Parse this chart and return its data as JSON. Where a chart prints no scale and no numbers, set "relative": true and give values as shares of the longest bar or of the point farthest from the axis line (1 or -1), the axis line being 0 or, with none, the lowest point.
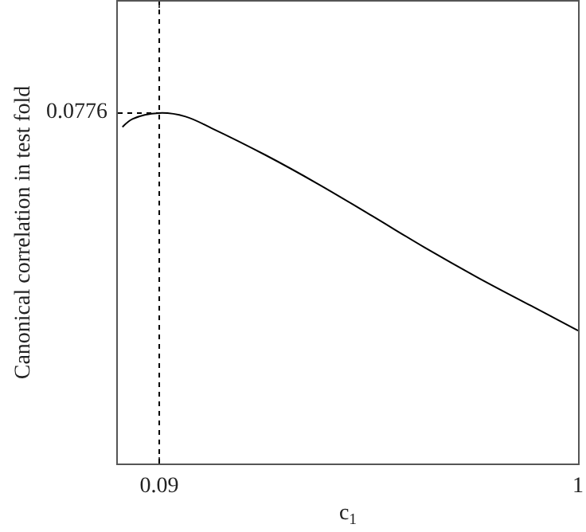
{
  "chart_data": {
    "type": "line",
    "relative": true,
    "xlabel": "c$_{1}$",
    "ylabel": "Canonical correlation in test fold",
    "x": [
      0.01,
      0.032,
      0.09,
      0.147,
      0.205,
      0.321,
      0.436,
      0.552,
      0.667,
      0.783,
      0.898,
      1.0
    ],
    "series": [
      {
        "color": "#000000",
        "values": [
          0.96,
          0.983,
          1.0,
          0.99,
          0.956,
          0.88,
          0.797,
          0.707,
          0.616,
          0.53,
          0.45,
          0.379
        ]
      }
    ],
    "xlim": [
      0,
      1
    ],
    "xticks": [
      0.09,
      1
    ],
    "ref_lines": [
      {
        "axis": "x",
        "value": 0.09,
        "line_style": "dotted",
        "color": "#000000"
      }
    ],
    "annotations": [
      {
        "text": "0.0776",
        "x": 0.09,
        "y": 1.0
      }
    ],
    "marker": "none",
    "line_style": "solid"
  }
}
